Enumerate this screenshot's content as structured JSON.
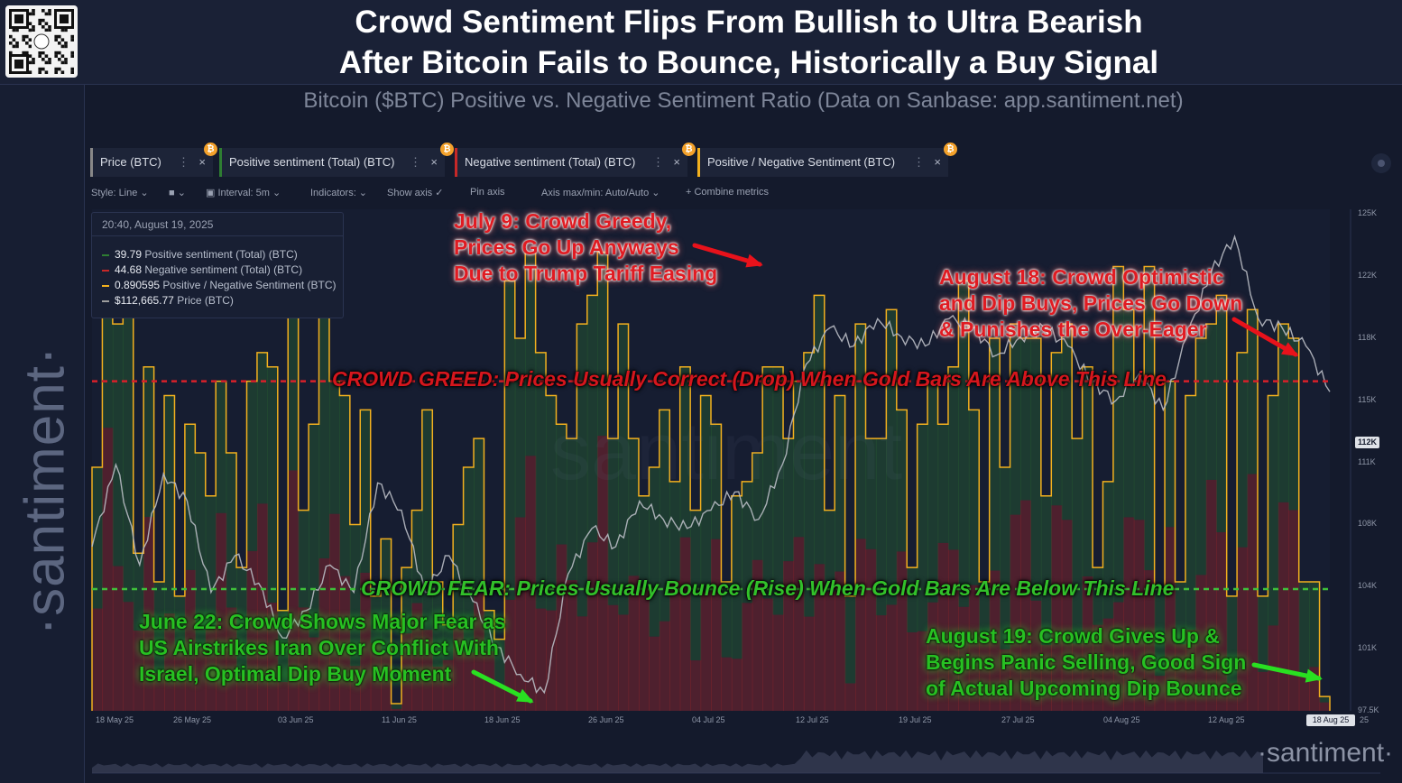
{
  "header": {
    "title_line1": "Crowd Sentiment Flips From Bullish to Ultra Bearish",
    "title_line2": "After Bitcoin Fails to Bounce, Historically a Buy Signal",
    "subtitle": "Bitcoin ($BTC) Positive vs. Negative Sentiment Ratio (Data on Sanbase: app.santiment.net)"
  },
  "brand": {
    "vertical": "·santiment·",
    "bottom_watermark": "·santiment·",
    "center_watermark": "santiment"
  },
  "tabs": [
    {
      "label": "Price (BTC)",
      "color": "#888888"
    },
    {
      "label": "Positive sentiment (Total) (BTC)",
      "color": "#2e7d32"
    },
    {
      "label": "Negative sentiment (Total) (BTC)",
      "color": "#c62828"
    },
    {
      "label": "Positive / Negative Sentiment (BTC)",
      "color": "#f2b01e"
    }
  ],
  "toolbar": {
    "style": "Style: Line",
    "interval": "Interval: 5m",
    "indicators": "Indicators:",
    "show_axis": "Show axis",
    "pin_axis": "Pin axis",
    "axis_maxmin": "Axis max/min: Auto/Auto",
    "combine": "Combine metrics"
  },
  "tooltip": {
    "timestamp": "20:40, August 19, 2025",
    "rows": [
      {
        "value": "39.79",
        "label": "Positive sentiment (Total) (BTC)",
        "color": "#2e7d32"
      },
      {
        "value": "44.68",
        "label": "Negative sentiment (Total) (BTC)",
        "color": "#c62828"
      },
      {
        "value": "0.890595",
        "label": "Positive / Negative Sentiment (BTC)",
        "color": "#f2b01e"
      },
      {
        "value": "$112,665.77",
        "label": "Price (BTC)",
        "color": "#9e9e9e"
      }
    ]
  },
  "annotations": {
    "july9": [
      "July 9: Crowd Greedy,",
      "Prices Go Up Anyways",
      "Due to Trump Tariff Easing"
    ],
    "aug18": [
      "August 18: Crowd Optimistic",
      "and Dip Buys, Prices Go Down",
      "& Punishes the Over-Eager"
    ],
    "greed_line": "CROWD GREED: Prices Usually Correct (Drop) When Gold Bars Are Above This Line",
    "fear_line": "CROWD FEAR: Prices Usually Bounce (Rise) When Gold Bars Are Below This Line",
    "june22": [
      "June 22: Crowd Shows Major Fear as",
      "US Airstrikes Iran Over Conflict With",
      "Israel, Optimal Dip Buy Moment"
    ],
    "aug19": [
      "August 19: Crowd Gives Up &",
      "Begins Panic Selling, Good Sign",
      "of Actual Upcoming Dip Bounce"
    ]
  },
  "colors": {
    "price_line": "#b9bcc4",
    "ratio_line": "#f2b01e",
    "positive": "#2e7d32",
    "negative": "#c62828",
    "greed_line": "#d8202a",
    "fear_line": "#3fbf3a"
  },
  "chart_data": {
    "type": "bar",
    "x_ticks": [
      "18 May 25",
      "26 May 25",
      "03 Jun 25",
      "11 Jun 25",
      "18 Jun 25",
      "26 Jun 25",
      "04 Jul 25",
      "12 Jul 25",
      "19 Jul 25",
      "27 Jul 25",
      "04 Aug 25",
      "12 Aug 25",
      "18 Aug 25",
      "25"
    ],
    "y_ticks_price": [
      "125K",
      "122K",
      "118K",
      "115K",
      "111K",
      "108K",
      "104K",
      "101K",
      "97.5K"
    ],
    "price_label": "112K",
    "price_ylim": [
      97500,
      125000
    ],
    "ratio_ylim": [
      0.7,
      4.2
    ],
    "greed_threshold": 3.0,
    "fear_threshold": 1.55,
    "series": [
      {
        "name": "Positive / Negative Sentiment (BTC)",
        "values": [
          2.4,
          4.0,
          3.4,
          3.7,
          1.8,
          3.1,
          1.6,
          2.9,
          1.5,
          2.7,
          2.5,
          2.2,
          3.0,
          2.5,
          1.7,
          3.0,
          3.2,
          3.1,
          1.4,
          3.7,
          2.1,
          2.7,
          3.6,
          3.0,
          2.9,
          2.0,
          2.8,
          1.5,
          1.9,
          0.75,
          1.7,
          2.1,
          2.8,
          1.6,
          1.3,
          2.0,
          2.4,
          2.6,
          1.4,
          1.2,
          3.7,
          3.3,
          3.9,
          3.2,
          2.9,
          2.7,
          2.6,
          3.4,
          3.6,
          3.9,
          2.6,
          3.4,
          2.6,
          2.2,
          2.4,
          2.8,
          2.3,
          3.1,
          2.1,
          2.9,
          2.7,
          1.6,
          2.2,
          2.3,
          2.5,
          3.1,
          3.1,
          2.6,
          3.0,
          3.2,
          3.6,
          2.1,
          2.9,
          1.5,
          3.4,
          2.6,
          2.6,
          3.5,
          2.8,
          1.7,
          2.7,
          3.0,
          2.7,
          3.1,
          3.7,
          2.8,
          1.6,
          3.3,
          2.4,
          3.4,
          3.3,
          3.3,
          2.2,
          3.2,
          3.4,
          2.6,
          3.1,
          1.7,
          2.3,
          3.8,
          3.5,
          3.0,
          3.8,
          1.55,
          3.0,
          1.6,
          2.9,
          3.3,
          3.4,
          3.6,
          1.5,
          3.2,
          3.5,
          1.5,
          2.9,
          3.4,
          3.3,
          1.6,
          1.6,
          0.8
        ]
      },
      {
        "name": "Price (BTC)",
        "values": [
          106500,
          111000,
          105500,
          110500,
          109000,
          104000,
          106000,
          104500,
          101500,
          103000,
          105500,
          104000,
          110000,
          108500,
          104000,
          106000,
          103500,
          101000,
          99500,
          98500,
          105000,
          107500,
          106500,
          109000,
          108000,
          107500,
          108500,
          109500,
          108000,
          111000,
          116500,
          118500,
          117500,
          119000,
          118000,
          117500,
          119000,
          118500,
          117000,
          118000,
          118500,
          117500,
          115500,
          114500,
          116000,
          114000,
          118000,
          121500,
          123500,
          119000,
          118500,
          117500,
          115000
        ]
      }
    ]
  }
}
